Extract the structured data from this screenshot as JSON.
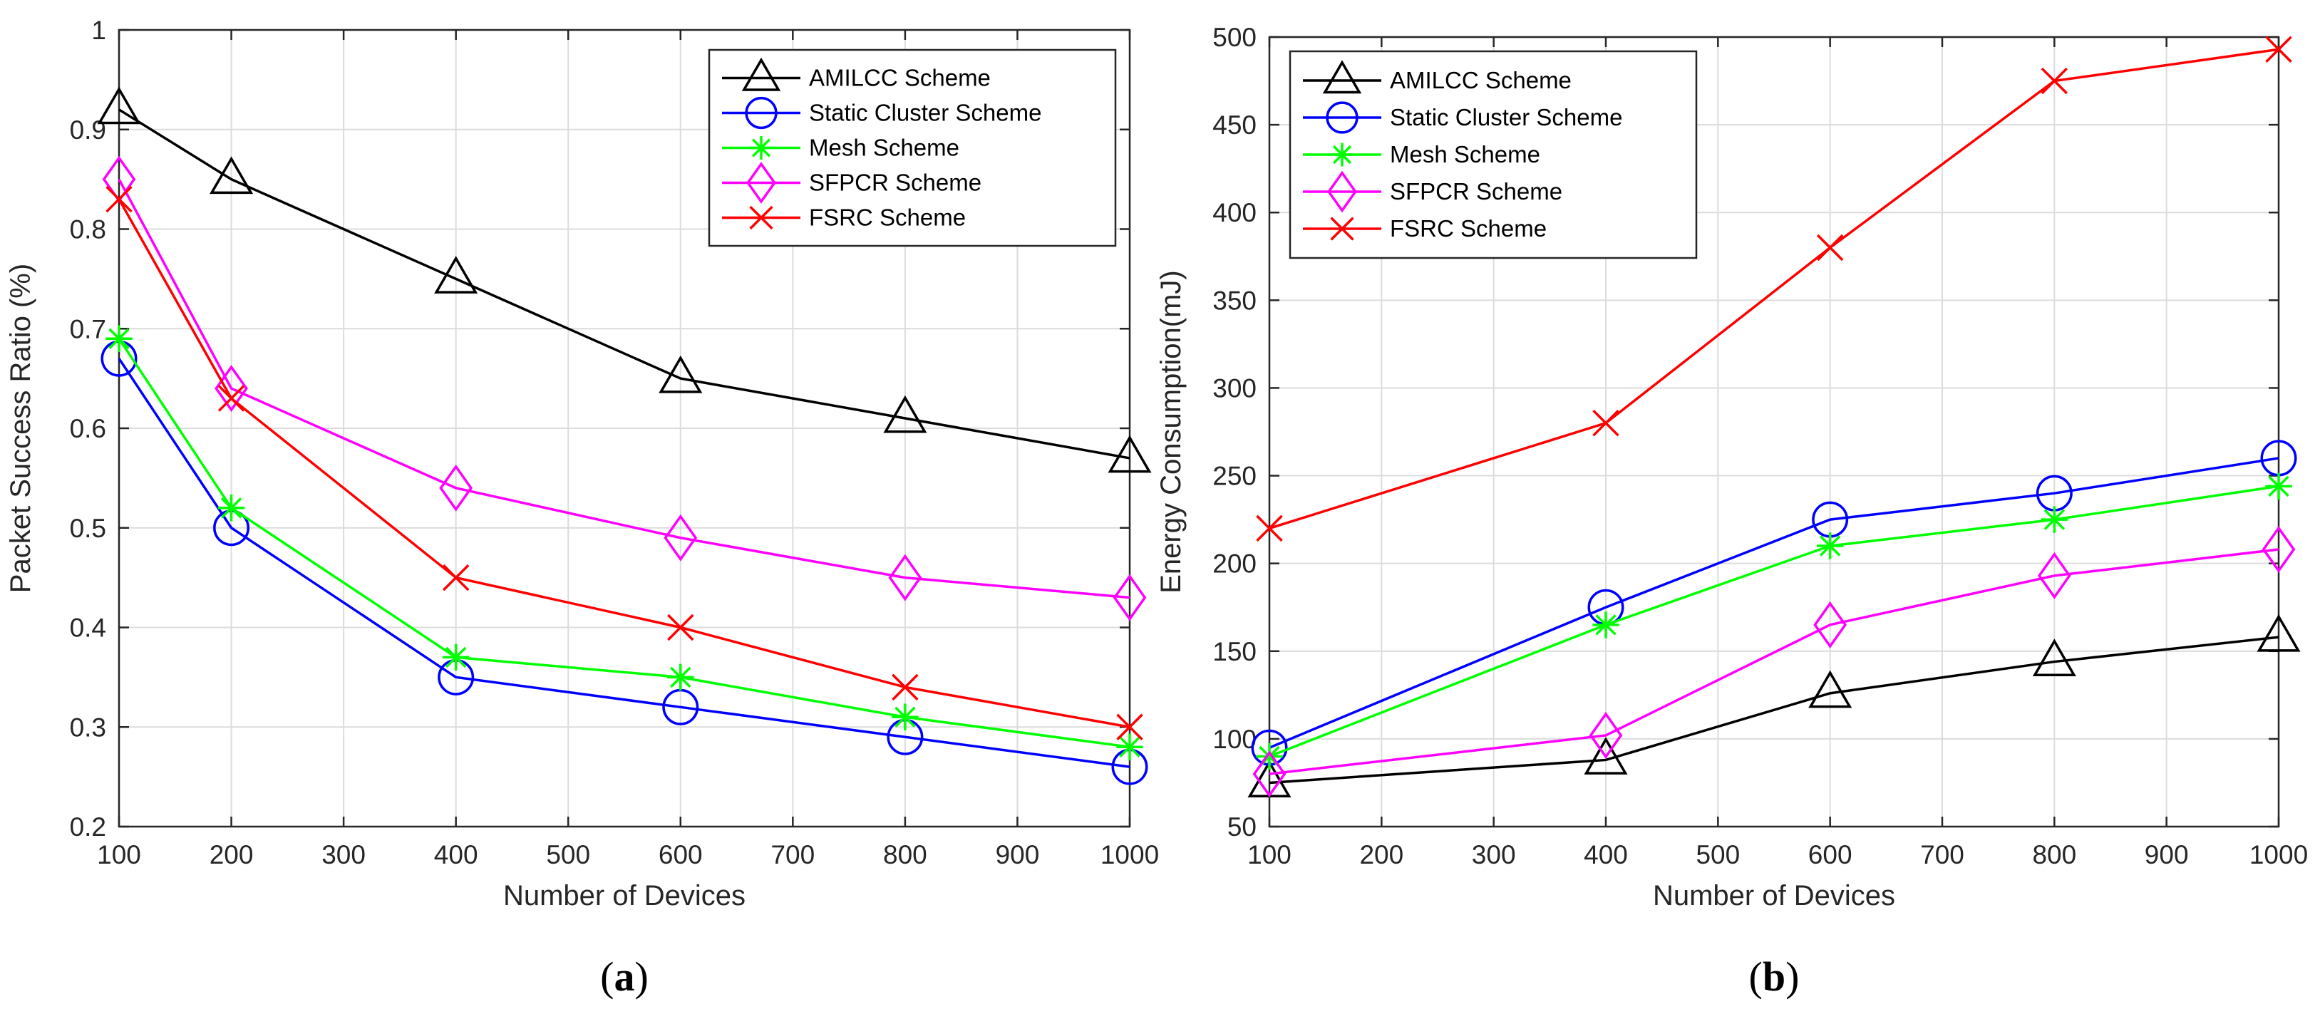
{
  "chart_data": [
    {
      "id": "a",
      "type": "line",
      "panel_label": "(a)",
      "panel_letter": "a",
      "xlabel": "Number of Devices",
      "ylabel": "Packet Success Ratio (%)",
      "xlim": [
        100,
        1000
      ],
      "ylim": [
        0.2,
        1
      ],
      "xticks": [
        100,
        200,
        300,
        400,
        500,
        600,
        700,
        800,
        900,
        1000
      ],
      "yticks": [
        0.2,
        0.3,
        0.4,
        0.5,
        0.6,
        0.7,
        0.8,
        0.9,
        1
      ],
      "ytick_labels": [
        "0.2",
        "0.3",
        "0.4",
        "0.5",
        "0.6",
        "0.7",
        "0.8",
        "0.9",
        "1"
      ],
      "grid": true,
      "legend_position": "top-right",
      "x": [
        100,
        200,
        400,
        600,
        800,
        1000
      ],
      "series": [
        {
          "name": "AMILCC Scheme",
          "color": "#000000",
          "marker": "triangle",
          "values": [
            0.92,
            0.85,
            0.75,
            0.65,
            0.61,
            0.57
          ]
        },
        {
          "name": "Static Cluster Scheme",
          "color": "#0000ff",
          "marker": "circle",
          "values": [
            0.67,
            0.5,
            0.35,
            0.32,
            0.29,
            0.26
          ]
        },
        {
          "name": "Mesh Scheme",
          "color": "#00ff00",
          "marker": "star",
          "values": [
            0.69,
            0.52,
            0.37,
            0.35,
            0.31,
            0.28
          ]
        },
        {
          "name": "SFPCR Scheme",
          "color": "#ff00ff",
          "marker": "diamond",
          "values": [
            0.85,
            0.64,
            0.54,
            0.49,
            0.45,
            0.43
          ]
        },
        {
          "name": "FSRC Scheme",
          "color": "#ff0000",
          "marker": "x",
          "values": [
            0.83,
            0.63,
            0.45,
            0.4,
            0.34,
            0.3
          ]
        }
      ]
    },
    {
      "id": "b",
      "type": "line",
      "panel_label": "(b)",
      "panel_letter": "b",
      "xlabel": "Number of Devices",
      "ylabel": "Energy Consumption(mJ)",
      "xlim": [
        100,
        1000
      ],
      "ylim": [
        50,
        500
      ],
      "xticks": [
        100,
        200,
        300,
        400,
        500,
        600,
        700,
        800,
        900,
        1000
      ],
      "yticks": [
        50,
        100,
        150,
        200,
        250,
        300,
        350,
        400,
        450,
        500
      ],
      "ytick_labels": [
        "50",
        "100",
        "150",
        "200",
        "250",
        "300",
        "350",
        "400",
        "450",
        "500"
      ],
      "grid": true,
      "legend_position": "top-left",
      "x": [
        100,
        400,
        600,
        800,
        1000
      ],
      "series": [
        {
          "name": "AMILCC Scheme",
          "color": "#000000",
          "marker": "triangle",
          "values": [
            75,
            88,
            126,
            144,
            158
          ]
        },
        {
          "name": "Static Cluster Scheme",
          "color": "#0000ff",
          "marker": "circle",
          "values": [
            95,
            175,
            225,
            240,
            260
          ]
        },
        {
          "name": "Mesh Scheme",
          "color": "#00ff00",
          "marker": "star",
          "values": [
            90,
            165,
            210,
            225,
            244
          ]
        },
        {
          "name": "SFPCR Scheme",
          "color": "#ff00ff",
          "marker": "diamond",
          "values": [
            80,
            102,
            165,
            193,
            208
          ]
        },
        {
          "name": "FSRC Scheme",
          "color": "#ff0000",
          "marker": "x",
          "values": [
            220,
            280,
            380,
            475,
            493
          ]
        }
      ]
    }
  ]
}
